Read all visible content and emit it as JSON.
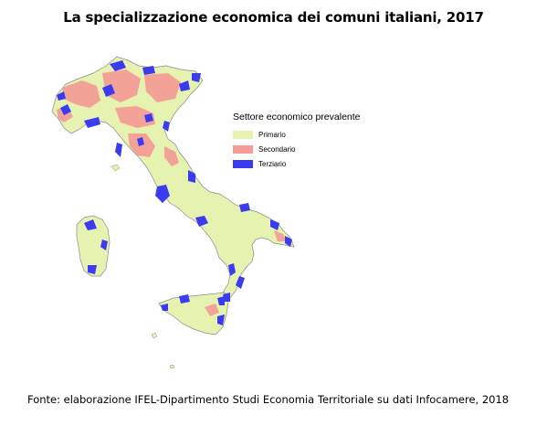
{
  "title": "La specializzazione economica dei comuni italiani, 2017",
  "legend": {
    "title": "Settore economico prevalente",
    "items": [
      {
        "label": "Primario",
        "color": "#e6f2b0"
      },
      {
        "label": "Secondario",
        "color": "#f59a96"
      },
      {
        "label": "Terziario",
        "color": "#3b3bf0"
      }
    ]
  },
  "source": "Fonte: elaborazione IFEL-Dipartimento Studi Economia Territoriale su dati Infocamere, 2018"
}
